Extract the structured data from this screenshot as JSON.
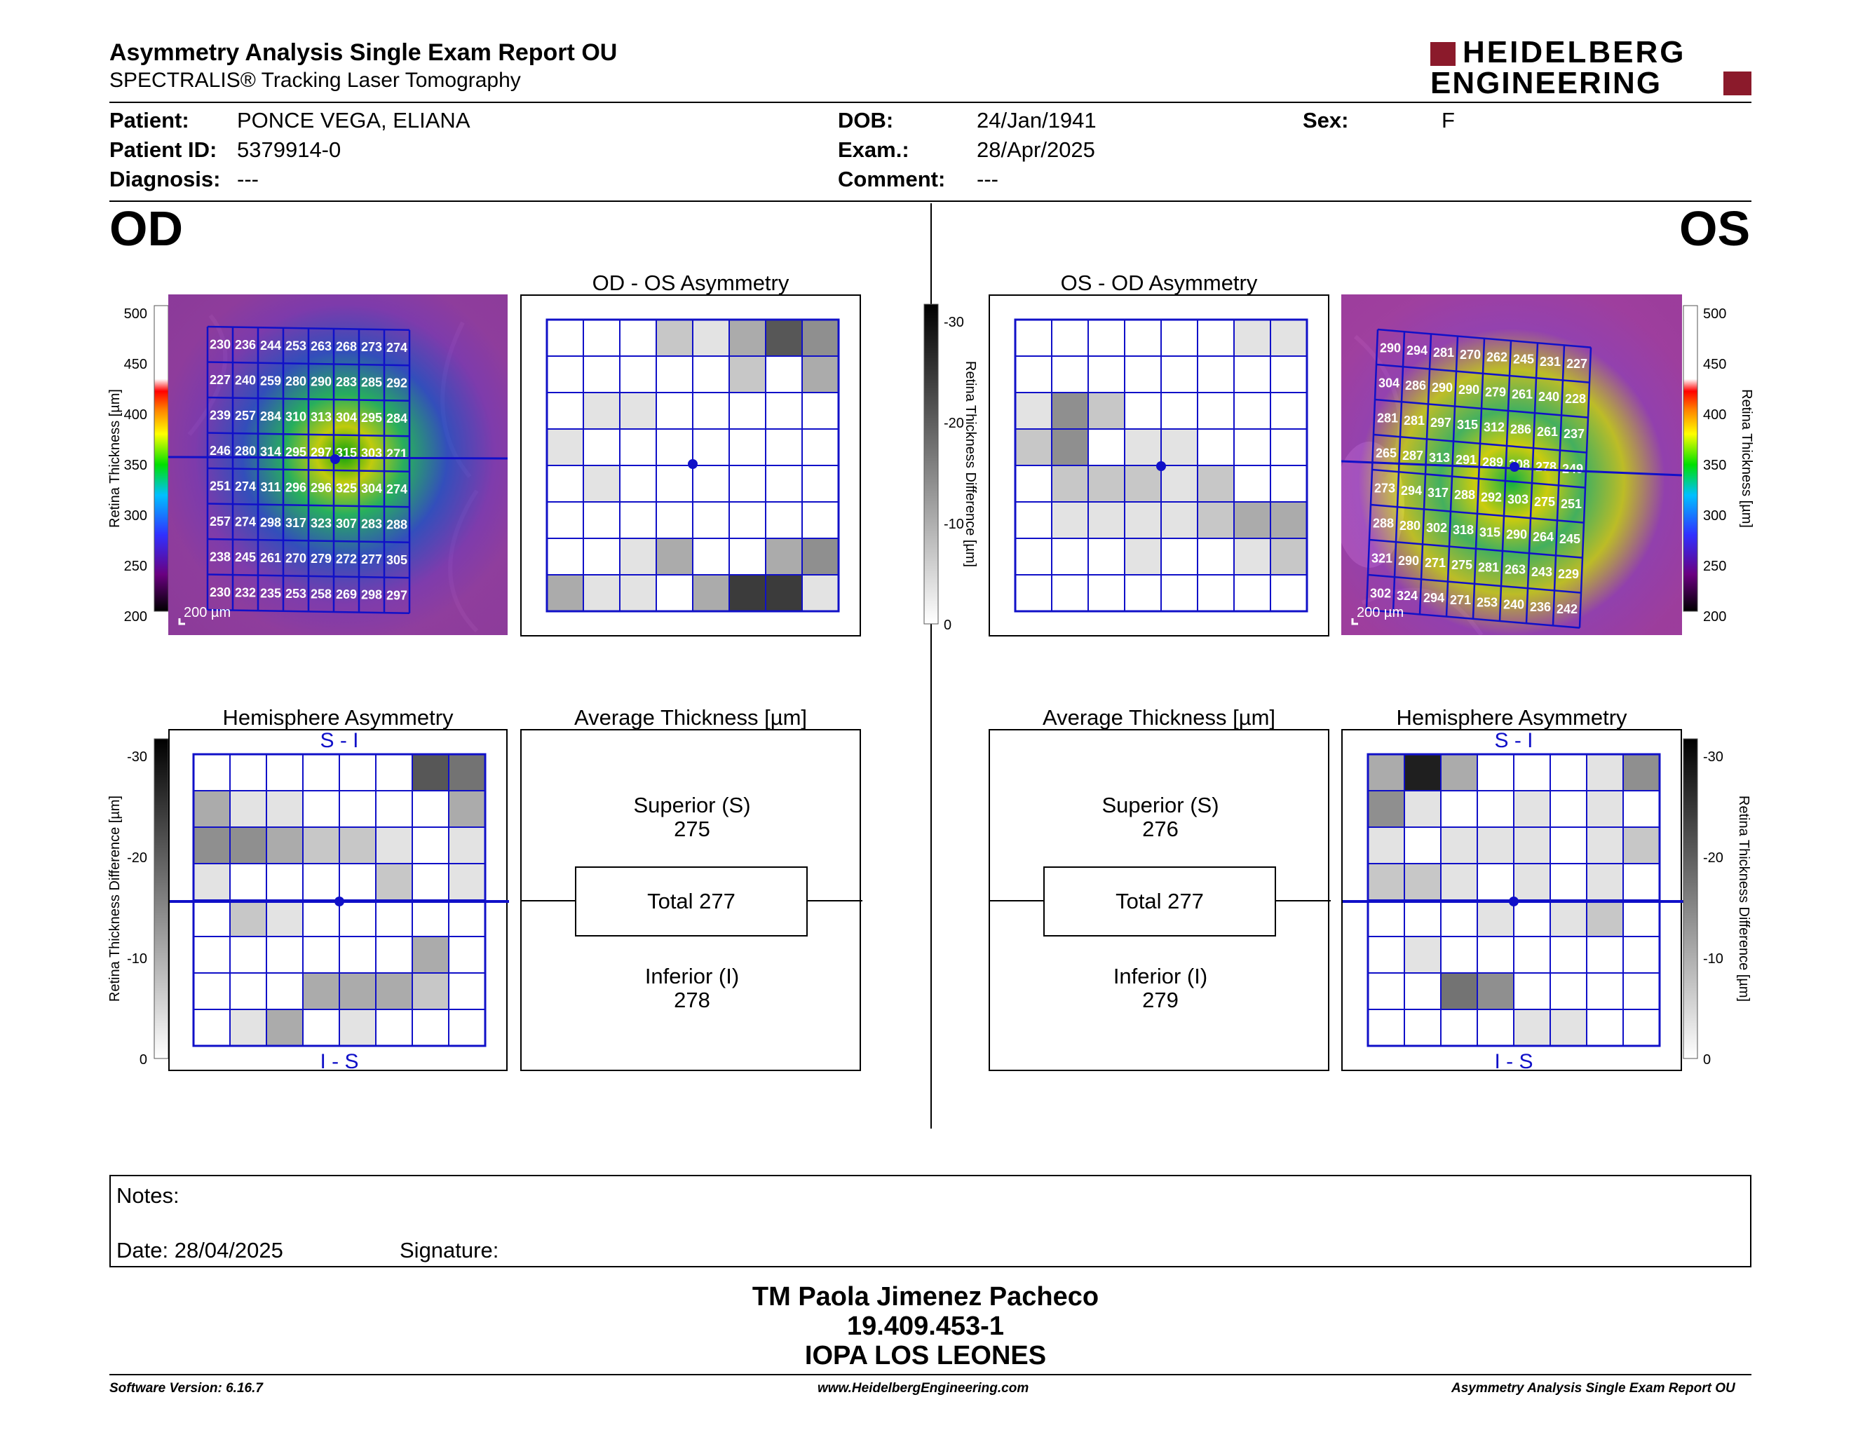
{
  "header": {
    "title": "Asymmetry Analysis Single Exam Report OU",
    "subtitle": "SPECTRALIS® Tracking Laser Tomography",
    "logo_line1": "HEIDELBERG",
    "logo_line2": "ENGINEERING"
  },
  "patient": {
    "patient_label": "Patient:",
    "patient_value": "PONCE VEGA, ELIANA",
    "id_label": "Patient ID:",
    "id_value": "5379914-0",
    "diag_label": "Diagnosis:",
    "diag_value": "---",
    "dob_label": "DOB:",
    "dob_value": "24/Jan/1941",
    "exam_label": "Exam.:",
    "exam_value": "28/Apr/2025",
    "comment_label": "Comment:",
    "comment_value": "---",
    "sex_label": "Sex:",
    "sex_value": "F"
  },
  "od": {
    "eye_label": "OD",
    "asym_title": "OD - OS Asymmetry",
    "hemi_title": "Hemisphere Asymmetry",
    "avg_title": "Average Thickness [µm]",
    "superior_label": "Superior (S)",
    "superior_value": "275",
    "total": "Total 277",
    "inferior_label": "Inferior (I)",
    "inferior_value": "278",
    "scale": "200 µm",
    "hemi_top": "S - I",
    "hemi_bottom": "I - S",
    "grid": [
      [
        230,
        236,
        244,
        253,
        263,
        268,
        273,
        274
      ],
      [
        227,
        240,
        259,
        280,
        290,
        283,
        285,
        292
      ],
      [
        239,
        257,
        284,
        310,
        313,
        304,
        295,
        284
      ],
      [
        246,
        280,
        314,
        295,
        297,
        315,
        303,
        271
      ],
      [
        251,
        274,
        311,
        296,
        296,
        325,
        304,
        274
      ],
      [
        257,
        274,
        298,
        317,
        323,
        307,
        283,
        288
      ],
      [
        238,
        245,
        261,
        270,
        279,
        272,
        277,
        305
      ],
      [
        230,
        232,
        235,
        253,
        258,
        269,
        298,
        297
      ]
    ],
    "asym_shade": [
      [
        0,
        0,
        0,
        2,
        1,
        3,
        6,
        4
      ],
      [
        0,
        0,
        0,
        0,
        0,
        2,
        0,
        3
      ],
      [
        0,
        1,
        1,
        0,
        0,
        0,
        0,
        0
      ],
      [
        1,
        0,
        0,
        0,
        0,
        0,
        0,
        0
      ],
      [
        0,
        1,
        0,
        0,
        0,
        0,
        0,
        0
      ],
      [
        0,
        0,
        0,
        0,
        0,
        0,
        0,
        0
      ],
      [
        0,
        0,
        1,
        3,
        0,
        0,
        3,
        4
      ],
      [
        3,
        1,
        1,
        0,
        3,
        7,
        7,
        1
      ]
    ],
    "hemi_shade": [
      [
        0,
        0,
        0,
        0,
        0,
        0,
        6,
        5
      ],
      [
        3,
        1,
        1,
        0,
        0,
        0,
        0,
        3
      ],
      [
        4,
        4,
        3,
        2,
        2,
        1,
        0,
        1
      ],
      [
        1,
        0,
        0,
        0,
        0,
        2,
        0,
        1
      ],
      [
        0,
        2,
        1,
        0,
        0,
        0,
        0,
        0
      ],
      [
        0,
        0,
        0,
        0,
        0,
        0,
        3,
        0
      ],
      [
        0,
        0,
        0,
        3,
        3,
        3,
        2,
        0
      ],
      [
        0,
        1,
        3,
        0,
        1,
        0,
        0,
        0
      ]
    ]
  },
  "os": {
    "eye_label": "OS",
    "asym_title": "OS - OD Asymmetry",
    "hemi_title": "Hemisphere Asymmetry",
    "avg_title": "Average Thickness [µm]",
    "superior_label": "Superior (S)",
    "superior_value": "276",
    "total": "Total 277",
    "inferior_label": "Inferior (I)",
    "inferior_value": "279",
    "scale": "200 µm",
    "hemi_top": "S - I",
    "hemi_bottom": "I - S",
    "grid": [
      [
        290,
        294,
        281,
        270,
        262,
        245,
        231,
        227
      ],
      [
        304,
        286,
        290,
        290,
        279,
        261,
        240,
        228
      ],
      [
        281,
        281,
        297,
        315,
        312,
        286,
        261,
        237
      ],
      [
        265,
        287,
        313,
        291,
        289,
        308,
        278,
        249
      ],
      [
        273,
        294,
        317,
        288,
        292,
        303,
        275,
        251
      ],
      [
        288,
        280,
        302,
        318,
        315,
        290,
        264,
        245
      ],
      [
        321,
        290,
        271,
        275,
        281,
        263,
        243,
        229
      ],
      [
        302,
        324,
        294,
        271,
        253,
        240,
        236,
        242
      ]
    ],
    "asym_shade": [
      [
        0,
        0,
        0,
        0,
        0,
        0,
        1,
        1
      ],
      [
        0,
        0,
        0,
        0,
        0,
        0,
        0,
        0
      ],
      [
        1,
        4,
        2,
        0,
        0,
        0,
        0,
        0
      ],
      [
        2,
        4,
        0,
        1,
        1,
        0,
        0,
        0
      ],
      [
        0,
        2,
        2,
        2,
        1,
        2,
        0,
        0
      ],
      [
        0,
        1,
        1,
        1,
        1,
        2,
        3,
        3
      ],
      [
        0,
        0,
        0,
        1,
        0,
        0,
        1,
        2
      ],
      [
        0,
        0,
        0,
        0,
        0,
        0,
        0,
        0
      ]
    ],
    "hemi_shade": [
      [
        3,
        8,
        3,
        0,
        0,
        0,
        1,
        4
      ],
      [
        4,
        1,
        0,
        0,
        1,
        0,
        1,
        0
      ],
      [
        1,
        0,
        1,
        1,
        1,
        0,
        1,
        2
      ],
      [
        2,
        2,
        1,
        0,
        1,
        0,
        1,
        0
      ],
      [
        0,
        0,
        0,
        1,
        0,
        1,
        2,
        0
      ],
      [
        0,
        1,
        0,
        0,
        0,
        0,
        0,
        0
      ],
      [
        0,
        0,
        5,
        4,
        0,
        0,
        0,
        0
      ],
      [
        0,
        0,
        0,
        0,
        1,
        1,
        0,
        0
      ]
    ]
  },
  "thickness_scale": {
    "axis_title": "Retina Thickness [µm]",
    "ticks": [
      "500",
      "450",
      "400",
      "350",
      "300",
      "250",
      "200"
    ]
  },
  "diff_scale": {
    "axis_title": "Retina Thickness Difference [µm]",
    "ticks": [
      "-30",
      "-20",
      "-10",
      "0"
    ]
  },
  "notes": {
    "notes_label": "Notes:",
    "date_label": "Date: 28/04/2025",
    "signature_label": "Signature:"
  },
  "signatory": {
    "name": "TM Paola Jimenez Pacheco",
    "id": "19.409.453-1",
    "org": "IOPA LOS LEONES"
  },
  "footer": {
    "software": "Software Version: 6.16.7",
    "website": "www.HeidelbergEngineering.com",
    "report": "Asymmetry Analysis Single Exam Report OU"
  },
  "colors": {
    "grid_blue": "#1010c8",
    "logo_red": "#8b1a2b"
  }
}
